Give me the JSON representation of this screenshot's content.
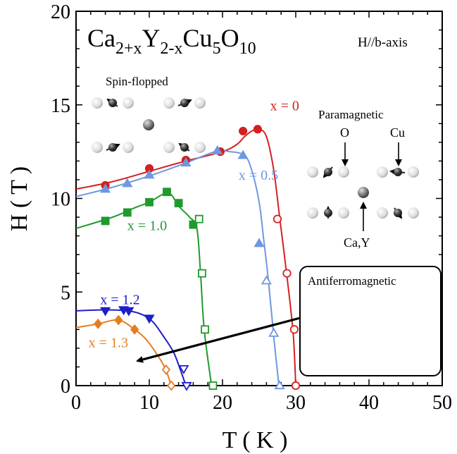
{
  "chart_data": {
    "type": "scatter",
    "xlabel": "T ( K )",
    "ylabel": "H ( T )",
    "xlim": [
      0,
      50
    ],
    "ylim": [
      0,
      20
    ],
    "x_ticks": [
      "0",
      "10",
      "20",
      "30",
      "40",
      "50"
    ],
    "y_ticks": [
      "0",
      "5",
      "10",
      "15",
      "20"
    ],
    "formula": {
      "base1": "Ca",
      "sub1": "2+x",
      "base2": "Y",
      "sub2": "2-x",
      "base3": "Cu",
      "sub3": "5",
      "base4": "O",
      "sub4": "10"
    },
    "field_direction": "H//b-axis",
    "phase_labels": {
      "spin_flopped": "Spin-flopped",
      "paramagnetic": "Paramagnetic",
      "antiferromagnetic": "Antiferromagnetic"
    },
    "atom_labels": {
      "o": "O",
      "cu": "Cu",
      "ca_y": "Ca,Y"
    },
    "series": [
      {
        "name": "x = 0",
        "color": "#d42020",
        "label_at": {
          "x": 26.5,
          "y": 14.7
        },
        "curve": [
          [
            0,
            10.5
          ],
          [
            5,
            10.9
          ],
          [
            10,
            11.45
          ],
          [
            15,
            12.0
          ],
          [
            20,
            12.5
          ],
          [
            22,
            12.9
          ],
          [
            23,
            13.3
          ],
          [
            24,
            13.6
          ],
          [
            25,
            13.7
          ],
          [
            26,
            13.3
          ],
          [
            27,
            11.5
          ],
          [
            27.8,
            9.0
          ],
          [
            28.5,
            6.8
          ],
          [
            29.2,
            4.5
          ],
          [
            29.7,
            2.5
          ],
          [
            30,
            0
          ]
        ],
        "filled": {
          "marker": "circle",
          "x": [
            4,
            10,
            15,
            19.7,
            22.8,
            24.8
          ],
          "y": [
            10.7,
            11.6,
            12.05,
            12.5,
            13.6,
            13.7
          ]
        },
        "open": {
          "marker": "circle",
          "x": [
            27.5,
            28.8,
            29.8,
            30
          ],
          "y": [
            8.9,
            6.0,
            3.0,
            0
          ]
        }
      },
      {
        "name": "x = 0.5",
        "color": "#6e98e0",
        "label_at": {
          "x": 22.2,
          "y": 11.0
        },
        "curve": [
          [
            0,
            10.1
          ],
          [
            5,
            10.6
          ],
          [
            10,
            11.2
          ],
          [
            15,
            11.9
          ],
          [
            19,
            12.5
          ],
          [
            21,
            12.5
          ],
          [
            23,
            12.3
          ],
          [
            24,
            11.5
          ],
          [
            25,
            9.8
          ],
          [
            25.6,
            7.9
          ],
          [
            26.3,
            5.5
          ],
          [
            27,
            2.6
          ],
          [
            27.7,
            0
          ]
        ],
        "filled": {
          "marker": "triangle-up",
          "x": [
            4,
            7,
            10,
            15,
            19.3,
            22.8,
            25
          ],
          "y": [
            10.5,
            10.8,
            11.25,
            11.9,
            12.55,
            12.3,
            7.6
          ]
        },
        "open": {
          "marker": "triangle-up",
          "x": [
            26,
            27,
            27.8
          ],
          "y": [
            5.6,
            2.8,
            0
          ]
        }
      },
      {
        "name": "x = 1.0",
        "color": "#1f9a2c",
        "label_at": {
          "x": 7.0,
          "y": 8.3
        },
        "curve": [
          [
            0,
            8.4
          ],
          [
            5,
            9.0
          ],
          [
            8,
            9.5
          ],
          [
            10,
            9.8
          ],
          [
            12,
            10.25
          ],
          [
            13,
            10.2
          ],
          [
            14,
            9.6
          ],
          [
            15.5,
            9.0
          ],
          [
            16.5,
            8.4
          ],
          [
            17,
            6.0
          ],
          [
            17.5,
            3.0
          ],
          [
            18.5,
            0
          ]
        ],
        "filled": {
          "marker": "square",
          "x": [
            4,
            7,
            10,
            12.4,
            14,
            16
          ],
          "y": [
            8.8,
            9.25,
            9.8,
            10.35,
            9.75,
            8.6
          ]
        },
        "open": {
          "marker": "square",
          "x": [
            16.8,
            17.2,
            17.6,
            18.7
          ],
          "y": [
            8.9,
            6.0,
            3.0,
            0
          ]
        }
      },
      {
        "name": "x = 1.2",
        "color": "#1e1ec8",
        "label_at": {
          "x": 3.3,
          "y": 4.35
        },
        "curve": [
          [
            0,
            4.0
          ],
          [
            4,
            4.05
          ],
          [
            7,
            4.0
          ],
          [
            9,
            3.8
          ],
          [
            10.5,
            3.4
          ],
          [
            12,
            2.6
          ],
          [
            13.3,
            1.8
          ],
          [
            14.2,
            0.9
          ],
          [
            15,
            0
          ]
        ],
        "filled": {
          "marker": "triangle-down",
          "x": [
            4,
            6.5,
            7.2,
            10
          ],
          "y": [
            4.0,
            4.05,
            4.0,
            3.6
          ]
        },
        "open": {
          "marker": "triangle-down",
          "x": [
            14.7,
            15.1
          ],
          "y": [
            0.9,
            0
          ]
        }
      },
      {
        "name": "x = 1.3",
        "color": "#e57d20",
        "label_at": {
          "x": 1.7,
          "y": 2.05
        },
        "curve": [
          [
            0,
            3.1
          ],
          [
            3,
            3.3
          ],
          [
            5.8,
            3.5
          ],
          [
            8,
            3.0
          ],
          [
            9.5,
            2.5
          ],
          [
            11,
            1.7
          ],
          [
            12.2,
            0.9
          ],
          [
            13,
            0
          ]
        ],
        "filled": {
          "marker": "diamond",
          "x": [
            3,
            5.8,
            8
          ],
          "y": [
            3.3,
            3.5,
            3.0
          ]
        },
        "open": {
          "marker": "diamond",
          "x": [
            12.3,
            13
          ],
          "y": [
            0.85,
            0
          ]
        }
      }
    ]
  }
}
